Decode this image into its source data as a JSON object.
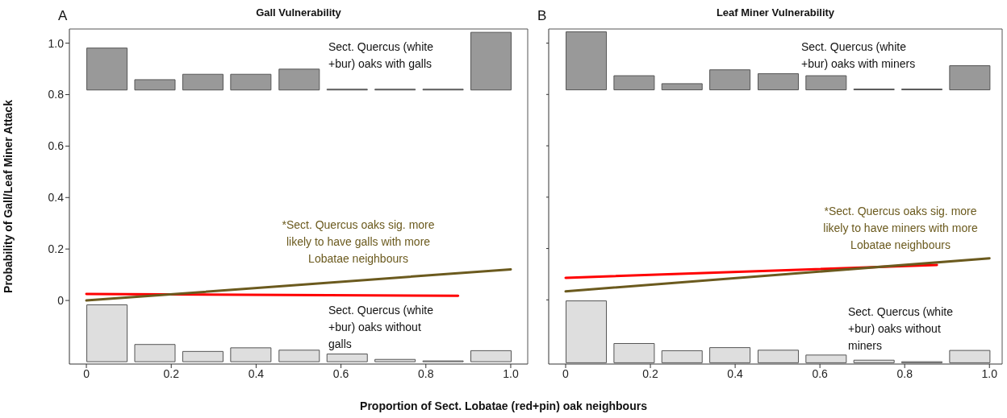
{
  "chart_data": [
    {
      "type": "bar",
      "title": "Gall Vulnerability",
      "ylabel": "Probability of Gall/Leaf Miner Attack",
      "xlabel": "Proportion of Sect. Lobatae (red+pin) oak neighbours",
      "x": [
        0.048,
        0.161,
        0.274,
        0.387,
        0.501,
        0.614,
        0.727,
        0.84,
        0.953
      ],
      "xlim": [
        -0.04,
        1.04
      ],
      "xticks": [
        0,
        0.2,
        0.4,
        0.6,
        0.8,
        {
          "value": 1,
          "label": "1.0"
        }
      ],
      "ylim": [
        -0.247,
        1.055
      ],
      "yticks": [
        0,
        0.2,
        0.4,
        0.6,
        0.8,
        {
          "value": 1,
          "label": "1.0"
        }
      ],
      "marker": "none",
      "series": [
        {
          "color": "#999999",
          "values": [
            0.163,
            0.04,
            0.061,
            0.061,
            0.081,
            0,
            0,
            0,
            0.224
          ],
          "base": [
            0.818,
            0.818,
            0.818,
            0.818,
            0.818,
            0.818,
            0.818,
            0.818,
            0.818
          ]
        },
        {
          "color": "#dedede",
          "values": [
            0.221,
            0.067,
            0.04,
            0.054,
            0.045,
            0.03,
            0.009,
            0.002,
            0.043
          ],
          "base": [
            -0.238,
            -0.238,
            -0.238,
            -0.238,
            -0.238,
            -0.238,
            -0.238,
            -0.238,
            -0.238
          ]
        },
        {
          "type": "line",
          "color": "#ff0000",
          "x": [
            0,
            0.876
          ],
          "values": [
            0.025,
            0.018
          ]
        },
        {
          "type": "line",
          "color": "#6b5a1e",
          "x": [
            0,
            1
          ],
          "values": [
            0.0,
            0.121
          ]
        }
      ],
      "annotations": [
        "A",
        "Sect. Quercus (white\n+bur) oaks with galls",
        "*Sect. Quercus oaks sig. more\nlikely to have galls with more\nLobatae neighbours",
        "Sect. Quercus (white\n+bur) oaks without\ngalls"
      ]
    },
    {
      "type": "bar",
      "title": "Leaf Miner Vulnerability",
      "tick_labels": "x",
      "x": [
        0.048,
        0.161,
        0.274,
        0.387,
        0.501,
        0.614,
        0.727,
        0.84,
        0.953
      ],
      "xlim": [
        -0.04,
        1.03
      ],
      "xticks": [
        0,
        0.2,
        0.4,
        0.6,
        0.8,
        {
          "value": 1,
          "label": "1.0"
        }
      ],
      "ylim": [
        -0.25,
        1.055
      ],
      "yticks": [
        0,
        0.2,
        0.4,
        0.6,
        0.8,
        1
      ],
      "marker": "none",
      "series": [
        {
          "color": "#999999",
          "values": [
            0.226,
            0.055,
            0.024,
            0.078,
            0.063,
            0.055,
            0,
            0,
            0.094
          ],
          "base": [
            0.818,
            0.818,
            0.818,
            0.818,
            0.818,
            0.818,
            0.818,
            0.818,
            0.818
          ]
        },
        {
          "color": "#dedede",
          "values": [
            0.241,
            0.075,
            0.047,
            0.059,
            0.049,
            0.03,
            0.01,
            0.004,
            0.048
          ],
          "base": [
            -0.245,
            -0.245,
            -0.245,
            -0.245,
            -0.245,
            -0.245,
            -0.245,
            -0.245,
            -0.245
          ]
        },
        {
          "type": "line",
          "color": "#ff0000",
          "x": [
            0,
            0.876
          ],
          "values": [
            0.086,
            0.136
          ]
        },
        {
          "type": "line",
          "color": "#6b5a1e",
          "x": [
            0,
            1
          ],
          "values": [
            0.033,
            0.162
          ]
        }
      ],
      "annotations": [
        "B",
        "Sect. Quercus (white\n+bur) oaks with miners",
        "*Sect. Quercus oaks sig. more\nlikely to have miners with more\nLobatae neighbours",
        "Sect. Quercus (white\n+bur) oaks without\nminers"
      ]
    }
  ]
}
